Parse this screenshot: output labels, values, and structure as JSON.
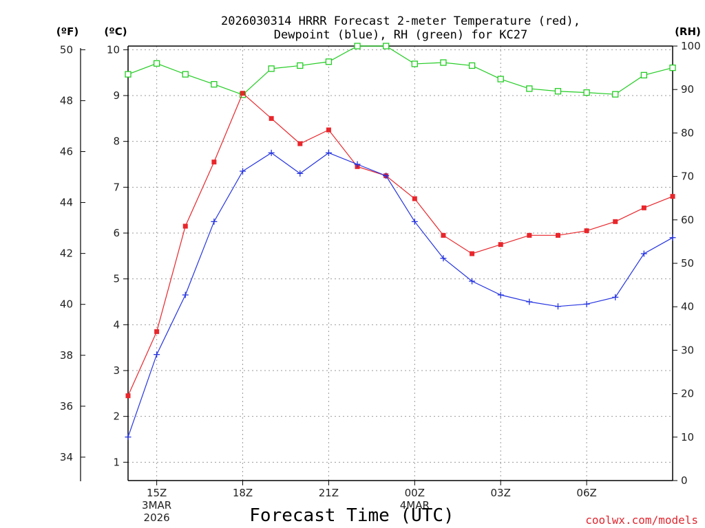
{
  "chart_data": {
    "type": "line",
    "title_line1": "2026030314 HRRR Forecast 2-meter Temperature (red),",
    "title_line2": "Dewpoint (blue), RH (green) for KC27",
    "xlabel": "Forecast Time (UTC)",
    "credit": "coolwx.com/models",
    "unit_f": "(ºF)",
    "unit_c": "(ºC)",
    "unit_rh": "(RH)",
    "x_hours": [
      14,
      15,
      16,
      17,
      18,
      19,
      20,
      21,
      22,
      23,
      24,
      25,
      26,
      27,
      28,
      29,
      30,
      31,
      32,
      33
    ],
    "x_ticks": [
      {
        "hour": 15,
        "label": "15Z",
        "sub1": "3MAR",
        "sub2": "2026"
      },
      {
        "hour": 18,
        "label": "18Z",
        "sub1": "",
        "sub2": ""
      },
      {
        "hour": 21,
        "label": "21Z",
        "sub1": "",
        "sub2": ""
      },
      {
        "hour": 24,
        "label": "00Z",
        "sub1": "4MAR",
        "sub2": ""
      },
      {
        "hour": 27,
        "label": "03Z",
        "sub1": "",
        "sub2": ""
      },
      {
        "hour": 30,
        "label": "06Z",
        "sub1": "",
        "sub2": ""
      }
    ],
    "ylim_c": [
      0.6,
      10.08
    ],
    "ylim_rh": [
      0,
      100
    ],
    "yticks_c": [
      "1",
      "2",
      "3",
      "4",
      "5",
      "6",
      "7",
      "8",
      "9",
      "10"
    ],
    "yticks_f": [
      "34",
      "36",
      "38",
      "40",
      "42",
      "44",
      "46",
      "48",
      "50"
    ],
    "yticks_rh": [
      "0",
      "10",
      "20",
      "30",
      "40",
      "50",
      "60",
      "70",
      "80",
      "90",
      "100"
    ],
    "series": [
      {
        "name": "Temperature",
        "axis": "celsius",
        "color": "#e8262b",
        "marker": "filled-square",
        "values": [
          2.45,
          3.85,
          6.15,
          7.55,
          9.05,
          8.5,
          7.95,
          8.25,
          7.45,
          7.25,
          6.75,
          5.95,
          5.55,
          5.75,
          5.95,
          5.95,
          6.05,
          6.25,
          6.55,
          6.8
        ]
      },
      {
        "name": "Dewpoint",
        "axis": "celsius",
        "color": "#2433e0",
        "marker": "plus",
        "values": [
          1.55,
          3.35,
          4.65,
          6.25,
          7.35,
          7.75,
          7.3,
          7.75,
          7.5,
          7.25,
          6.25,
          5.45,
          4.95,
          4.65,
          4.5,
          4.4,
          4.45,
          4.6,
          5.55,
          5.9
        ]
      },
      {
        "name": "RH",
        "axis": "rh",
        "color": "#22cc22",
        "marker": "open-square",
        "values": [
          93.5,
          96,
          93.5,
          91.2,
          88.8,
          94.8,
          95.5,
          96.4,
          100,
          100,
          95.9,
          96.2,
          95.5,
          92.4,
          90.2,
          89.6,
          89.3,
          88.9,
          93.3,
          95
        ]
      }
    ]
  }
}
